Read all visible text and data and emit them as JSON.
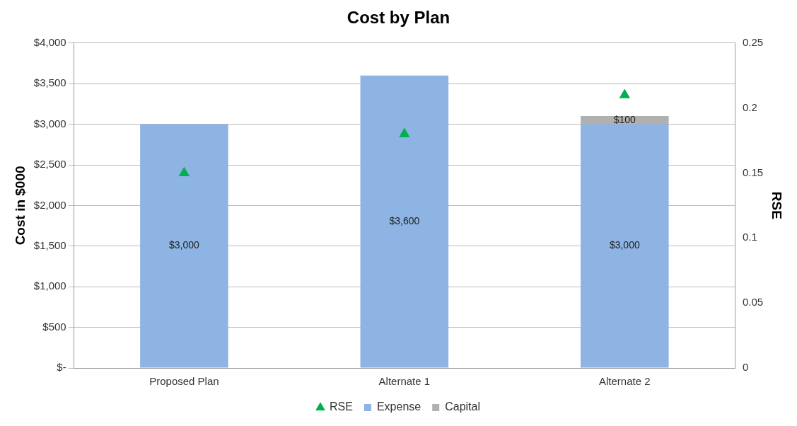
{
  "chart_data": {
    "type": "bar",
    "title": "Cost by Plan",
    "ylabel": "Cost in $000",
    "y2label": "RSE",
    "categories": [
      "Proposed Plan",
      "Alternate 1",
      "Alternate 2"
    ],
    "stacked": true,
    "series": [
      {
        "name": "Expense",
        "color": "#8db4e2",
        "values": [
          3000,
          3600,
          3000
        ],
        "value_labels": [
          "$3,000",
          "$3,600",
          "$3,000"
        ]
      },
      {
        "name": "Capital",
        "color": "#b0b0b0",
        "values": [
          null,
          null,
          100
        ],
        "value_labels": [
          null,
          null,
          "$100"
        ]
      },
      {
        "name": "RSE",
        "type": "scatter",
        "axis": "y2",
        "color": "#00b050",
        "marker": "triangle",
        "values": [
          0.15,
          0.18,
          0.21
        ]
      }
    ],
    "ylim": [
      0,
      4000
    ],
    "yticks": [
      {
        "value": 0,
        "label": "$-"
      },
      {
        "value": 500,
        "label": "$500"
      },
      {
        "value": 1000,
        "label": "$1,000"
      },
      {
        "value": 1500,
        "label": "$1,500"
      },
      {
        "value": 2000,
        "label": "$2,000"
      },
      {
        "value": 2500,
        "label": "$2,500"
      },
      {
        "value": 3000,
        "label": "$3,000"
      },
      {
        "value": 3500,
        "label": "$3,500"
      },
      {
        "value": 4000,
        "label": "$4,000"
      }
    ],
    "y2lim": [
      0,
      0.25
    ],
    "y2ticks": [
      0,
      0.05,
      0.1,
      0.15,
      0.2,
      0.25
    ],
    "grid": "y",
    "legend": "bottom"
  }
}
